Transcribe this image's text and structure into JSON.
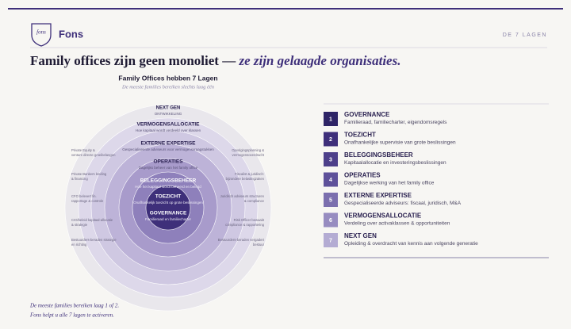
{
  "header": {
    "logo_mark": "fons",
    "brand": "Fons",
    "section": "DE 7 LAGEN"
  },
  "title": {
    "main": "Family offices zijn geen monoliet — ",
    "emphasis": "ze zijn gelaagde organisaties."
  },
  "diagram": {
    "title": "Family Offices hebben 7 Lagen",
    "subtitle": "De meeste families bereiken slechts laag één",
    "rings": [
      {
        "name": "GOVERNANCE",
        "caption": "Familieraad en familiecharter"
      },
      {
        "name": "TOEZICHT",
        "caption": "Onafhankelijk toezicht op grote beslissingen"
      },
      {
        "name": "BELEGGINGSBEHEER",
        "caption": "Hoe het kapitaal wordt beheerd en belegd"
      },
      {
        "name": "OPERATIES",
        "caption": "Dagelijks beheer van het family office"
      },
      {
        "name": "EXTERNE EXPERTISE",
        "caption": "Gespecialiseerde adviseurs voor vermogensvraagstukken"
      },
      {
        "name": "VERMOGENSALLOCATIE",
        "caption": "Hoe kapitaal wordt verdeeld over klassen"
      },
      {
        "name": "NEXT GEN",
        "caption": "ONTWIKKELING"
      }
    ],
    "left_notes": [
      "Private Equity & venture directe groeibelangen",
      "Private Bankers lending & financing",
      "CFO belevert fin. rapportage & controle",
      "CIO/beleid kapitaal-allocatie & strategie",
      "Bestuurders-beraden strategie en richting"
    ],
    "right_notes": [
      "Opvolgingsplanning & vermogensoverdracht",
      "Fiscalist & juridisch: bijzondere belastingzaken",
      "Juridisch adviseurs structuren & compliance",
      "Risk Officer bewaakt compliance & rapportering",
      "Bestuurders-beraden vergadert bestuur"
    ]
  },
  "list": [
    {
      "number": "1",
      "title": "GOVERNANCE",
      "text": "Familieraad, familiecharter, eigendomsregels"
    },
    {
      "number": "2",
      "title": "TOEZICHT",
      "text": "Onafhankelijke supervisie van grote beslissingen"
    },
    {
      "number": "3",
      "title": "BELEGGINGSBEHEER",
      "text": "Kapitaalallocatie en investeringsbeslissingen"
    },
    {
      "number": "4",
      "title": "OPERATIES",
      "text": "Dagelijkse werking van het family office"
    },
    {
      "number": "5",
      "title": "EXTERNE EXPERTISE",
      "text": "Gespecialiseerde adviseurs: fiscaal, juridisch, M&A"
    },
    {
      "number": "6",
      "title": "VERMOGENSALLOCATIE",
      "text": "Verdeling over activaklassen & opportuniteiten"
    },
    {
      "number": "7",
      "title": "NEXT GEN",
      "text": "Opleiding & overdracht van kennis aan volgende generatie"
    }
  ],
  "footer": [
    "De meeste families bereiken laag 1 of 2.",
    "Fons helpt u alle 7 lagen te activeren."
  ]
}
